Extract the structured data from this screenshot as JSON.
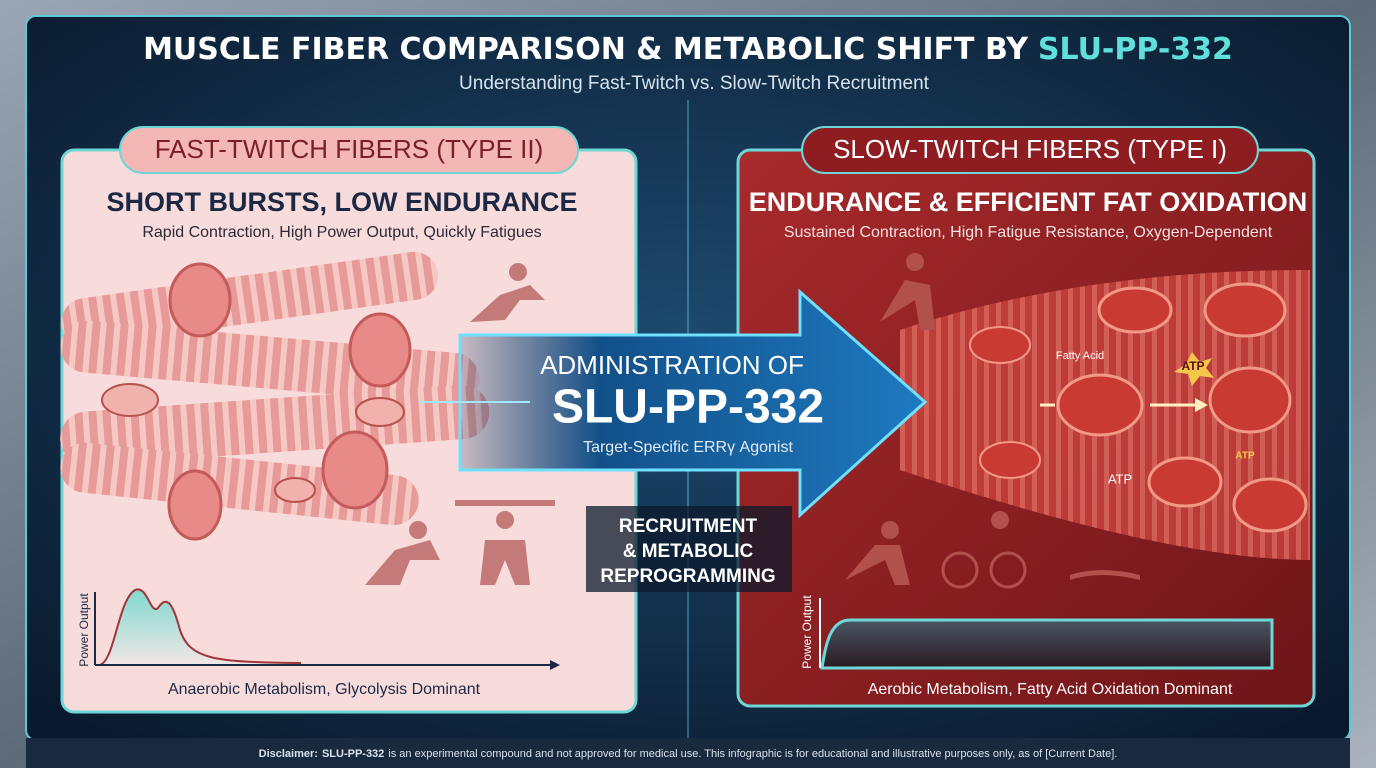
{
  "header": {
    "title": "MUSCLE FIBER COMPARISON & METABOLIC SHIFT BY",
    "title_highlight": "SLU-PP-332",
    "subtitle": "Understanding Fast-Twitch vs. Slow-Twitch Recruitment"
  },
  "left_panel": {
    "label": "FAST-TWITCH FIBERS (TYPE II)",
    "heading": "SHORT BURSTS, LOW ENDURANCE",
    "description": "Rapid Contraction, High Power Output, Quickly Fatigues",
    "graph_axis_label": "Power Output",
    "graph_caption": "Anaerobic Metabolism, Glycolysis Dominant"
  },
  "center": {
    "line1": "ADMINISTRATION OF",
    "compound": "SLU-PP-332",
    "description": "Target-Specific ERRγ Agonist",
    "process_lines": [
      "RECRUITMENT",
      "& METABOLIC",
      "REPROGRAMMING"
    ]
  },
  "right_panel": {
    "label": "SLOW-TWITCH FIBERS (TYPE I)",
    "heading": "ENDURANCE & EFFICIENT FAT OXIDATION",
    "description": "Sustained Contraction, High Fatigue Resistance, Oxygen-Dependent",
    "diagram_labels": [
      "Fatty Acid",
      "ATP",
      "ATP",
      "ATP"
    ],
    "graph_axis_label": "Power Output",
    "graph_caption": "Aerobic Metabolism, Fatty Acid Oxidation Dominant"
  },
  "footer": {
    "label": "Disclaimer:",
    "compound": "SLU-PP-332",
    "text": "is an experimental compound and not approved for medical use. This infographic is for educational and illustrative purposes only, as of [Current Date]."
  }
}
